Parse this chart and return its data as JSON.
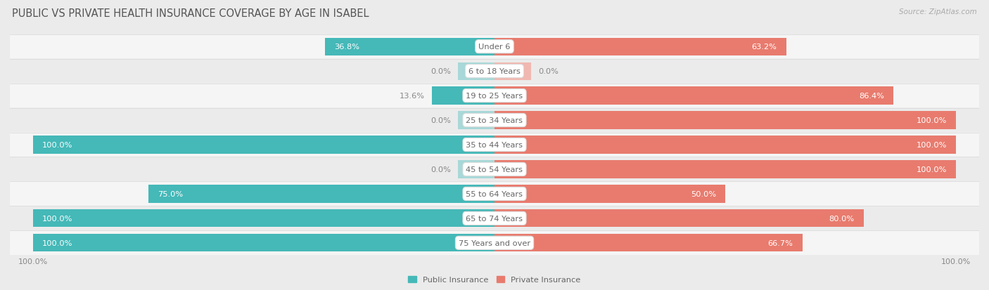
{
  "title": "PUBLIC VS PRIVATE HEALTH INSURANCE COVERAGE BY AGE IN ISABEL",
  "source": "Source: ZipAtlas.com",
  "categories": [
    "Under 6",
    "6 to 18 Years",
    "19 to 25 Years",
    "25 to 34 Years",
    "35 to 44 Years",
    "45 to 54 Years",
    "55 to 64 Years",
    "65 to 74 Years",
    "75 Years and over"
  ],
  "public": [
    36.8,
    0.0,
    13.6,
    0.0,
    100.0,
    0.0,
    75.0,
    100.0,
    100.0
  ],
  "private": [
    63.2,
    0.0,
    86.4,
    100.0,
    100.0,
    100.0,
    50.0,
    80.0,
    66.7
  ],
  "public_color": "#45b8b8",
  "private_color": "#e87b6e",
  "public_stub_color": "#a8d8d8",
  "private_stub_color": "#f0b8b0",
  "bg_color": "#ebebeb",
  "row_bg_even": "#f5f5f5",
  "row_bg_odd": "#ebebeb",
  "row_border_color": "#d8d8d8",
  "bar_height": 0.72,
  "stub_value": 8.0,
  "title_fontsize": 10.5,
  "label_fontsize": 8.2,
  "cat_fontsize": 8.2,
  "tick_fontsize": 8,
  "source_fontsize": 7.5,
  "value_color_inside": "#ffffff",
  "value_color_outside": "#888888",
  "cat_text_color": "#666666"
}
